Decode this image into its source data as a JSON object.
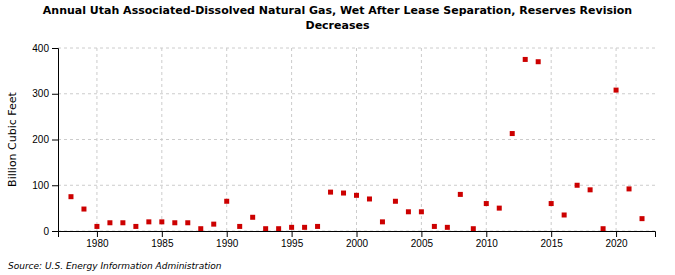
{
  "chart_data": {
    "type": "scatter",
    "title": "Annual Utah Associated-Dissolved Natural Gas, Wet After Lease Separation, Reserves Revision\nDecreases",
    "ylabel": "Billion Cubic Feet",
    "source": "Source: U.S. Energy Information Administration",
    "color": "#cc0000",
    "marker": "square",
    "grid": true,
    "xlim": [
      1977,
      2023
    ],
    "ylim": [
      0,
      400
    ],
    "yticks": [
      0,
      100,
      200,
      300,
      400
    ],
    "xticks": [
      1980,
      1985,
      1990,
      1995,
      2000,
      2005,
      2010,
      2015,
      2020
    ],
    "x": [
      1978,
      1979,
      1980,
      1981,
      1982,
      1983,
      1984,
      1985,
      1986,
      1987,
      1988,
      1989,
      1990,
      1991,
      1992,
      1993,
      1994,
      1995,
      1996,
      1997,
      1998,
      1999,
      2000,
      2001,
      2002,
      2003,
      2004,
      2005,
      2006,
      2007,
      2008,
      2009,
      2010,
      2011,
      2012,
      2013,
      2014,
      2015,
      2016,
      2017,
      2018,
      2019,
      2020,
      2021,
      2022
    ],
    "values": [
      75,
      48,
      10,
      18,
      18,
      10,
      20,
      20,
      18,
      18,
      5,
      15,
      65,
      10,
      30,
      5,
      5,
      8,
      8,
      10,
      85,
      83,
      78,
      70,
      20,
      65,
      42,
      42,
      10,
      8,
      80,
      5,
      60,
      50,
      213,
      375,
      370,
      60,
      35,
      100,
      90,
      5,
      308,
      92,
      27
    ]
  }
}
